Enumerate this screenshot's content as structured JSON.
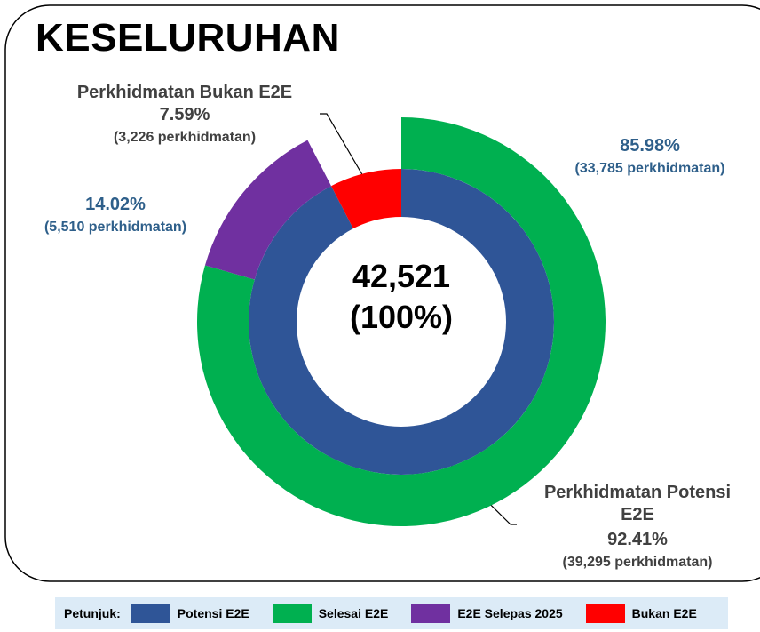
{
  "chart_data": {
    "type": "nested-donut",
    "title": "KESELURUHAN",
    "center_labels": [
      "42,521",
      "(100%)"
    ],
    "legend_title": "Petunjuk:",
    "series": [
      {
        "name": "Potensi E2E",
        "color": "#2f5597",
        "label": "Perkhidmatan Potensi E2E",
        "value": 92.41,
        "value_label": "92.41%",
        "count_label": "(39,295 perkhidmatan)",
        "children": [
          {
            "name": "Selesai E2E",
            "color": "#00b050",
            "value": 85.98,
            "value_label": "85.98%",
            "count_label": "(33,785 perkhidmatan)"
          },
          {
            "name": "E2E Selepas 2025",
            "color": "#7030a0",
            "value": 14.02,
            "value_label": "14.02%",
            "count_label": "(5,510 perkhidmatan)"
          }
        ]
      },
      {
        "name": "Bukan E2E",
        "color": "#ff0000",
        "label": "Perkhidmatan Bukan E2E",
        "value": 7.59,
        "value_label": "7.59%",
        "count_label": "(3,226 perkhidmatan)"
      }
    ]
  }
}
